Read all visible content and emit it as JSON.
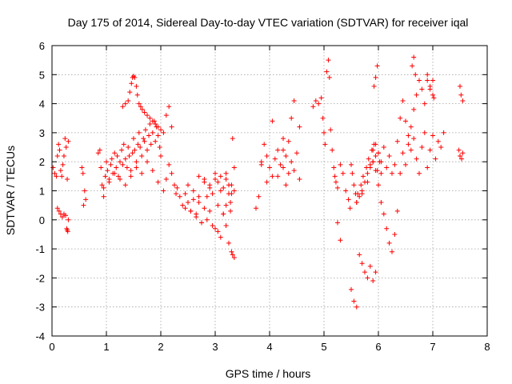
{
  "chart_data": {
    "type": "scatter",
    "title": "Day 175 of 2014, Sidereal Day-to-day VTEC variation (SDTVAR) for receiver iqal",
    "xlabel": "GPS time / hours",
    "ylabel": "SDTVAR / TECUs",
    "xlim": [
      0,
      8
    ],
    "ylim": [
      -4,
      6
    ],
    "xticks": [
      0,
      1,
      2,
      3,
      4,
      5,
      6,
      7,
      8
    ],
    "yticks": [
      -4,
      -3,
      -2,
      -1,
      0,
      1,
      2,
      3,
      4,
      5,
      6
    ],
    "grid": true,
    "marker": "+",
    "color": "#ff0000",
    "series": [
      {
        "name": "SDTVAR",
        "x": [
          0.02,
          0.05,
          0.08,
          0.1,
          0.12,
          0.14,
          0.16,
          0.18,
          0.2,
          0.22,
          0.24,
          0.26,
          0.28,
          0.3,
          0.1,
          0.13,
          0.16,
          0.19,
          0.22,
          0.25,
          0.27,
          0.29,
          0.28,
          0.3,
          0.55,
          0.57,
          0.6,
          0.62,
          0.58,
          0.85,
          0.88,
          0.9,
          0.92,
          0.95,
          0.98,
          1.0,
          1.02,
          1.05,
          1.08,
          1.1,
          1.12,
          1.15,
          1.18,
          1.2,
          1.22,
          1.25,
          1.28,
          1.3,
          1.32,
          1.35,
          1.38,
          1.4,
          1.42,
          1.45,
          1.48,
          1.5,
          1.52,
          1.55,
          1.58,
          1.6,
          1.62,
          1.65,
          1.68,
          1.7,
          1.72,
          1.75,
          1.78,
          1.8,
          1.82,
          1.85,
          1.88,
          1.9,
          1.92,
          1.95,
          1.98,
          2.0,
          1.3,
          1.35,
          1.4,
          1.43,
          1.46,
          1.48,
          1.5,
          1.52,
          1.55,
          1.57,
          1.6,
          1.63,
          1.66,
          1.7,
          1.75,
          1.8,
          1.85,
          1.9,
          1.95,
          2.0,
          2.05,
          2.1,
          2.15,
          2.2,
          0.95,
          1.05,
          1.15,
          1.25,
          1.35,
          1.45,
          1.55,
          1.65,
          1.75,
          1.85,
          1.95,
          2.05,
          2.1,
          2.15,
          2.2,
          2.25,
          2.28,
          2.3,
          2.35,
          2.4,
          2.45,
          2.5,
          2.55,
          2.6,
          2.65,
          2.7,
          2.75,
          2.8,
          2.85,
          2.9,
          2.95,
          3.0,
          3.05,
          3.1,
          3.15,
          3.2,
          3.25,
          3.3,
          3.35,
          2.5,
          2.6,
          2.7,
          2.8,
          2.9,
          3.0,
          3.1,
          3.2,
          3.25,
          3.3,
          2.45,
          2.55,
          2.65,
          2.75,
          2.85,
          2.95,
          3.05,
          3.15,
          3.2,
          3.28,
          3.32,
          2.7,
          2.8,
          2.9,
          3.0,
          3.05,
          3.1,
          3.15,
          3.2,
          3.25,
          3.3,
          3.35,
          3.32,
          3.35,
          3.28,
          3.75,
          3.8,
          3.85,
          3.9,
          3.95,
          4.0,
          4.05,
          4.1,
          4.15,
          4.2,
          4.25,
          4.3,
          4.35,
          4.4,
          4.45,
          4.5,
          4.55,
          3.85,
          3.95,
          4.05,
          4.15,
          4.25,
          4.35,
          4.4,
          4.45,
          4.3,
          4.25,
          4.55,
          4.8,
          4.85,
          4.9,
          4.95,
          4.98,
          5.0,
          5.02,
          5.05,
          5.08,
          5.1,
          5.12,
          5.15,
          5.18,
          5.2,
          5.22,
          5.25,
          5.3,
          5.35,
          5.4,
          5.45,
          5.48,
          5.5,
          5.52,
          5.55,
          5.58,
          5.6,
          5.62,
          5.65,
          5.68,
          5.7,
          5.72,
          5.75,
          5.78,
          5.8,
          5.82,
          5.85,
          5.88,
          5.9,
          5.92,
          5.95,
          5.98,
          6.0,
          6.02,
          6.05,
          5.65,
          5.7,
          5.75,
          5.8,
          5.85,
          5.9,
          5.95,
          5.5,
          5.55,
          5.6,
          5.25,
          5.3,
          5.6,
          5.7,
          5.8,
          5.9,
          5.95,
          6.0,
          6.05,
          6.1,
          6.15,
          6.2,
          6.25,
          6.3,
          6.35,
          6.4,
          6.45,
          6.5,
          6.55,
          6.6,
          6.65,
          6.7,
          6.75,
          6.8,
          6.85,
          6.9,
          6.95,
          7.0,
          7.05,
          7.1,
          7.15,
          7.2,
          5.85,
          5.9,
          5.95,
          6.0,
          6.05,
          6.1,
          6.15,
          6.2,
          6.25,
          6.3,
          6.35,
          6.4,
          6.45,
          6.5,
          6.55,
          6.6,
          6.65,
          6.7,
          6.75,
          6.8,
          6.85,
          6.9,
          6.95,
          7.0,
          5.92,
          5.95,
          5.98,
          6.62,
          6.65,
          6.68,
          6.9,
          6.95,
          7.0,
          7.02,
          7.5,
          7.52,
          7.55,
          7.48,
          7.5,
          7.53,
          7.55
        ],
        "y": [
          1.8,
          1.6,
          1.5,
          2.2,
          2.6,
          2.4,
          1.7,
          1.5,
          1.9,
          2.2,
          2.8,
          2.5,
          1.4,
          2.7,
          0.4,
          0.3,
          0.2,
          0.1,
          0.2,
          0.15,
          -0.3,
          -0.4,
          -0.35,
          0.0,
          1.8,
          1.6,
          1.0,
          0.7,
          0.5,
          2.3,
          2.4,
          1.8,
          1.2,
          0.8,
          1.5,
          2.0,
          1.7,
          1.4,
          1.9,
          2.1,
          1.6,
          2.3,
          1.8,
          2.2,
          1.5,
          2.0,
          2.4,
          1.9,
          2.6,
          2.1,
          1.8,
          2.5,
          2.2,
          1.7,
          2.3,
          2.8,
          2.4,
          2.0,
          2.6,
          3.0,
          2.5,
          2.2,
          2.8,
          2.7,
          3.1,
          2.4,
          2.9,
          3.3,
          2.6,
          3.0,
          3.4,
          2.7,
          3.2,
          2.9,
          2.5,
          2.2,
          3.9,
          4.0,
          4.1,
          4.4,
          4.7,
          4.9,
          4.95,
          4.9,
          4.6,
          4.3,
          4.0,
          3.9,
          3.8,
          3.7,
          3.6,
          3.5,
          3.4,
          3.3,
          3.2,
          3.1,
          3.0,
          3.6,
          3.9,
          3.2,
          1.1,
          1.3,
          1.6,
          1.4,
          1.2,
          1.5,
          1.8,
          1.6,
          2.0,
          1.7,
          1.3,
          1.0,
          1.4,
          1.9,
          1.6,
          1.2,
          0.9,
          1.1,
          0.8,
          0.5,
          0.9,
          0.6,
          0.3,
          0.7,
          0.2,
          0.6,
          -0.1,
          0.4,
          0.8,
          0.3,
          0.9,
          -0.3,
          0.5,
          -0.6,
          0.2,
          -0.2,
          -0.8,
          -1.1,
          -1.3,
          1.2,
          1.0,
          0.8,
          1.3,
          1.1,
          1.4,
          1.0,
          1.6,
          1.2,
          0.9,
          0.4,
          0.3,
          0.1,
          -0.1,
          0.0,
          -0.2,
          -0.4,
          0.2,
          0.5,
          0.6,
          -1.2,
          1.5,
          1.4,
          1.2,
          1.6,
          1.3,
          1.5,
          1.1,
          1.4,
          0.9,
          1.2,
          1.0,
          2.8,
          1.8,
          0.3,
          0.4,
          0.8,
          1.9,
          2.6,
          2.2,
          1.8,
          1.5,
          2.1,
          2.4,
          1.9,
          2.8,
          2.2,
          1.6,
          2.0,
          1.7,
          2.3,
          1.4,
          2.0,
          1.3,
          3.4,
          1.5,
          1.8,
          2.7,
          3.5,
          4.1,
          1.2,
          2.4,
          3.2,
          3.9,
          4.1,
          4.0,
          4.2,
          3.5,
          3.0,
          2.6,
          5.1,
          5.5,
          4.9,
          3.1,
          2.4,
          1.8,
          1.5,
          1.3,
          1.1,
          1.9,
          1.6,
          1.0,
          0.7,
          0.4,
          1.9,
          1.6,
          1.2,
          0.9,
          0.6,
          0.9,
          0.8,
          1.2,
          1.0,
          1.5,
          1.3,
          1.8,
          1.6,
          2.1,
          1.8,
          2.4,
          2.0,
          2.6,
          2.2,
          1.7,
          2.3,
          2.0,
          1.6,
          -1.2,
          -1.5,
          -1.8,
          -2.0,
          -1.6,
          -2.1,
          -1.8,
          -2.4,
          -2.8,
          -3.0,
          -0.1,
          -0.7,
          0.6,
          0.9,
          1.3,
          2.0,
          2.6,
          1.2,
          0.6,
          0.2,
          -0.3,
          -0.8,
          -1.1,
          -0.5,
          0.3,
          1.6,
          2.3,
          1.9,
          2.6,
          3.2,
          2.8,
          2.1,
          1.6,
          2.5,
          3.0,
          1.8,
          2.4,
          2.9,
          2.1,
          2.7,
          2.5,
          3.0,
          1.9,
          2.4,
          1.7,
          2.3,
          2.0,
          2.5,
          1.8,
          2.2,
          1.6,
          1.9,
          2.7,
          3.5,
          4.1,
          3.4,
          2.9,
          2.4,
          3.8,
          4.3,
          4.8,
          4.5,
          4.0,
          5.0,
          4.6,
          4.3,
          4.6,
          4.9,
          5.3,
          5.3,
          5.6,
          5.0,
          4.8,
          4.5,
          4.8,
          4.2,
          4.6,
          4.3,
          4.1,
          2.4,
          2.2,
          2.1,
          2.3
        ]
      }
    ]
  }
}
